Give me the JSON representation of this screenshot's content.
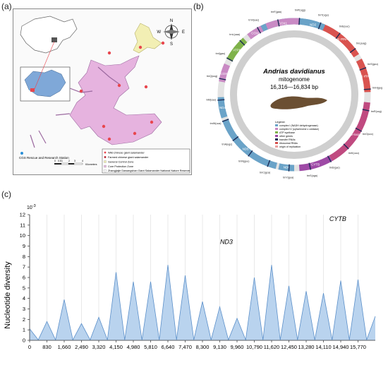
{
  "panels": {
    "a": {
      "label": "(a)"
    },
    "b": {
      "label": "(b)"
    },
    "c": {
      "label": "(c)"
    }
  },
  "map": {
    "station_label": "CGS Rescue and Research Station",
    "compass_letters": {
      "north": "N",
      "south": "S",
      "east": "E",
      "west": "W"
    },
    "scale_ticks": [
      "0",
      "0.5",
      "1",
      "2",
      "3",
      "4"
    ],
    "scale_unit": "Kilometers",
    "legend": [
      "Wild chinese giant salamander",
      "Farmed chinese giant salamander",
      "General Control Zone",
      "Core Protection Zone",
      "Zhangjiajie Dawangshan Giant Salamander National Nature Reserve"
    ],
    "colors": {
      "core": "#e6b3df",
      "general": "#f2efb4",
      "points": "#e8464e",
      "inset": "#7fa8d8"
    }
  },
  "genome": {
    "species": "Andrias davidianus",
    "subtitle": "mitogenome",
    "length": "16,316—16,834 bp",
    "legend_title": "Legend:",
    "legend_items": [
      {
        "label": "complex I (NADH dehydrogenase)",
        "color": "#6aa3c8"
      },
      {
        "label": "complex IV (cytochrome c oxidase)",
        "color": "#c98ac4"
      },
      {
        "label": "ATP synthase",
        "color": "#7fb24a"
      },
      {
        "label": "other genes",
        "color": "#9e4aa6"
      },
      {
        "label": "transfer RNAs",
        "color": "#1b2a55"
      },
      {
        "label": "ribosomal RNAs",
        "color": "#d9534f"
      },
      {
        "label": "origin of replication",
        "color": "#e8a0a0"
      }
    ],
    "segments": [
      {
        "label": "ND1",
        "start": -28,
        "end": 18,
        "color": "#6aa3c8"
      },
      {
        "label": "16S rRNA",
        "start": 22,
        "end": 58,
        "color": "#d9534f"
      },
      {
        "label": "12S rRNA",
        "start": 62,
        "end": 88,
        "color": "#d9534f"
      },
      {
        "label": "D-loop",
        "start": 96,
        "end": 150,
        "color": "#c04a80"
      },
      {
        "label": "CYTB",
        "start": 150,
        "end": 176,
        "color": "#9e4aa6"
      },
      {
        "label": "ND6",
        "start": 180,
        "end": 192,
        "color": "#6aa3c8"
      },
      {
        "label": "ND5",
        "start": 194,
        "end": 250,
        "color": "#6aa3c8"
      },
      {
        "label": "ND4",
        "start": 252,
        "end": 268,
        "color": "#6aa3c8"
      },
      {
        "label": "COX3",
        "start": 280,
        "end": 294,
        "color": "#c98ac4"
      },
      {
        "label": "ATP6",
        "start": 298,
        "end": 318,
        "color": "#7fb24a"
      },
      {
        "label": "COX2",
        "start": 322,
        "end": 334,
        "color": "#c98ac4"
      },
      {
        "label": "COX1",
        "start": 338,
        "end": 364,
        "color": "#c98ac4"
      },
      {
        "label": "ND2",
        "start": 366,
        "end": 384,
        "color": "#6aa3c8"
      }
    ],
    "trna_labels": [
      "trnP(ugg)",
      "trnT(ugu)",
      "trnE(uuc)",
      "trnL(uag)",
      "trnS(gcu)",
      "trnH(gug)",
      "trnR(ucg)",
      "trnG(ucc)",
      "trnK(uuu)",
      "trnD(guc)",
      "trnS(uga)",
      "trnY(gua)",
      "trnC(gca)",
      "trnN(guu)",
      "trnA(ugc)",
      "trnW(uca)",
      "trnM(cau)",
      "trnQ(uug)",
      "trnI(gau)",
      "trnL(uaa)",
      "trnV(uac)",
      "trnF(gaa)"
    ]
  },
  "chart_data": {
    "type": "line",
    "ylabel": "Nucleotide diversity",
    "y_multiplier": "10",
    "y_multiplier_exp": "-3",
    "ylim": [
      0,
      12
    ],
    "yticks": [
      0,
      1,
      2,
      3,
      4,
      5,
      6,
      7,
      8,
      9,
      10,
      11,
      12
    ],
    "xlim": [
      0,
      16600
    ],
    "xticks": [
      0,
      830,
      1660,
      2490,
      3320,
      4150,
      4980,
      5810,
      6640,
      7470,
      8300,
      9130,
      9960,
      10790,
      11620,
      12450,
      13280,
      14110,
      14940,
      15770
    ],
    "grid": "vertical",
    "fill": "#b9d3ee",
    "line_color": "#5b8fc9",
    "annotations": [
      {
        "text": "ND3",
        "x": 9450,
        "y": 8.8
      },
      {
        "text": "CYTB",
        "x": 14800,
        "y": 11.0
      }
    ],
    "series": [
      {
        "points": [
          [
            0,
            1.1
          ],
          [
            415,
            0.05
          ],
          [
            830,
            1.8
          ],
          [
            1245,
            0.05
          ],
          [
            1660,
            3.9
          ],
          [
            2075,
            0.05
          ],
          [
            2490,
            1.6
          ],
          [
            2905,
            0.05
          ],
          [
            3320,
            2.2
          ],
          [
            3735,
            0.05
          ],
          [
            4150,
            6.5
          ],
          [
            4565,
            0.05
          ],
          [
            4980,
            5.6
          ],
          [
            5395,
            0.05
          ],
          [
            5810,
            5.6
          ],
          [
            6225,
            0.05
          ],
          [
            6640,
            7.2
          ],
          [
            7055,
            0.05
          ],
          [
            7470,
            6.2
          ],
          [
            7885,
            0.05
          ],
          [
            8300,
            3.7
          ],
          [
            8715,
            0.05
          ],
          [
            9130,
            3.2
          ],
          [
            9545,
            0.05
          ],
          [
            9960,
            2.1
          ],
          [
            10375,
            0.05
          ],
          [
            10790,
            6.0
          ],
          [
            11205,
            0.05
          ],
          [
            11620,
            7.2
          ],
          [
            12035,
            0.05
          ],
          [
            12450,
            5.2
          ],
          [
            12865,
            0.05
          ],
          [
            13280,
            4.7
          ],
          [
            13695,
            0.05
          ],
          [
            14110,
            4.5
          ],
          [
            14525,
            0.05
          ],
          [
            14940,
            5.7
          ],
          [
            15355,
            0.05
          ],
          [
            15770,
            5.8
          ],
          [
            16185,
            0.05
          ],
          [
            16600,
            2.3
          ]
        ]
      }
    ]
  }
}
